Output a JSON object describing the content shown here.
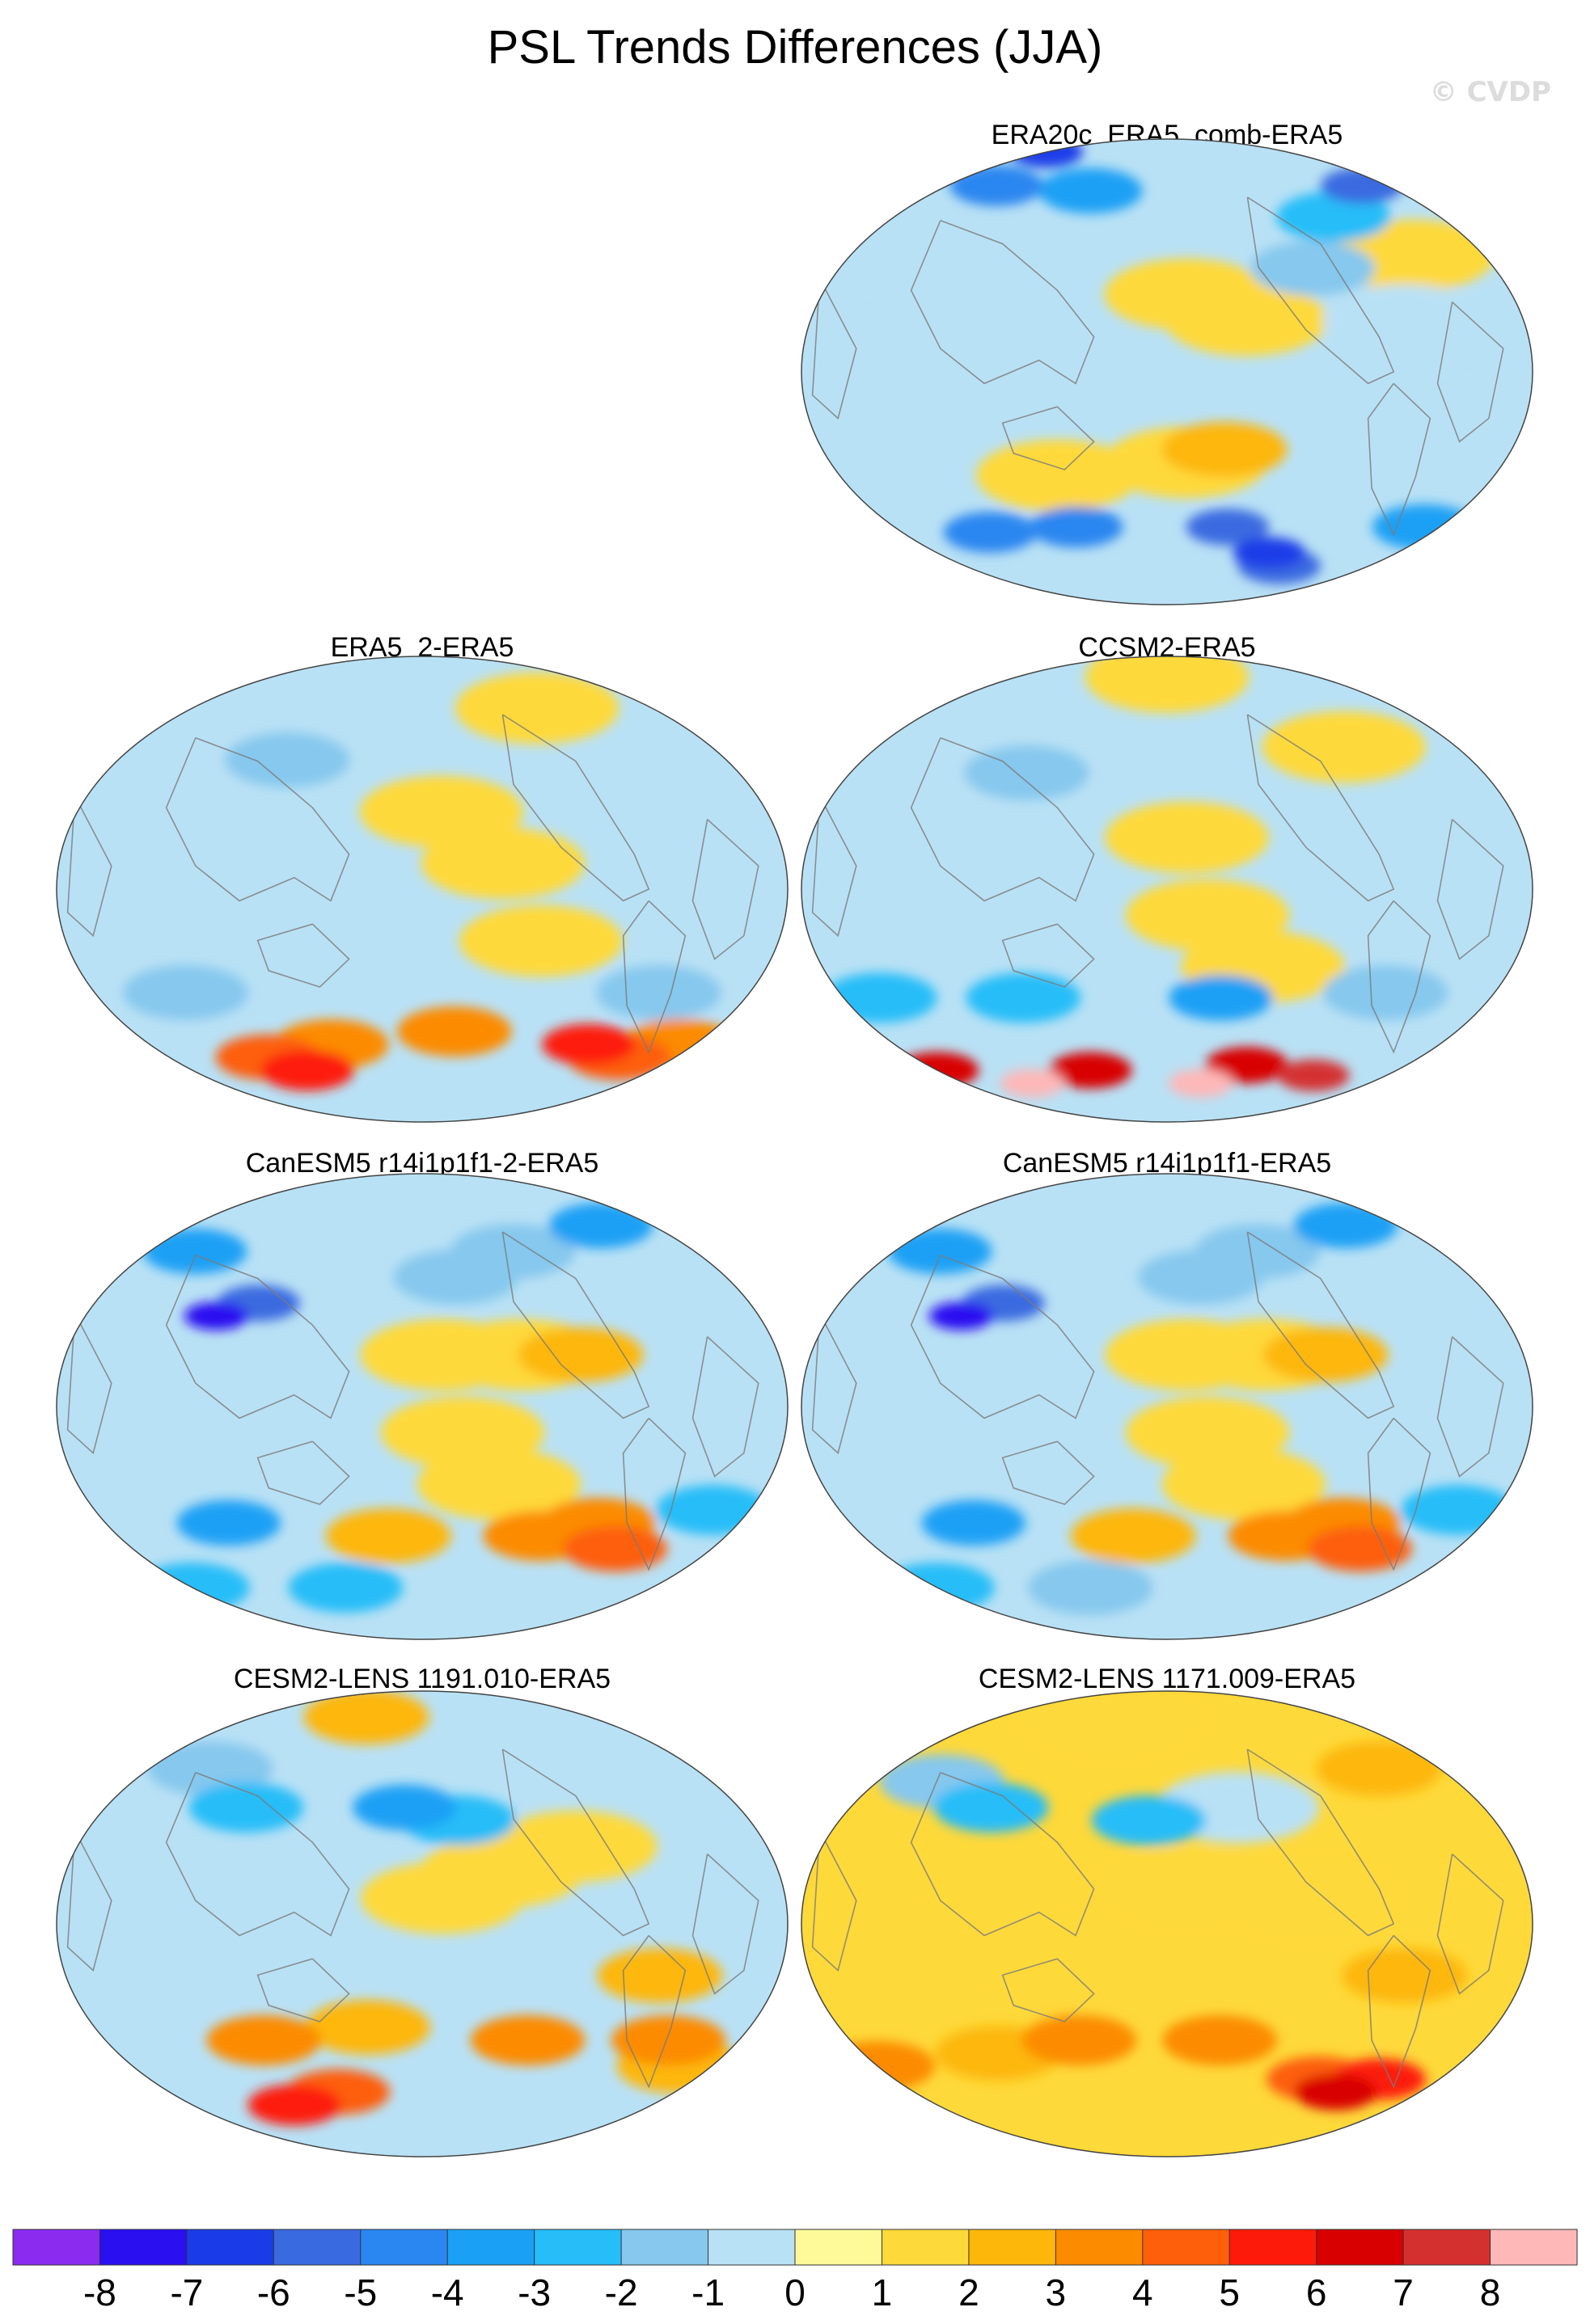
{
  "title": "PSL Trends Differences (JJA)",
  "watermark": "© CVDP",
  "chart_data": {
    "type": "heatmap",
    "title": "PSL Trends Differences (JJA)",
    "projection": "Robinson-like global maps, Pacific-centered",
    "panels": [
      {
        "id": "p0",
        "title": "ERA20c_ERA5_comb-ERA5",
        "row": 0,
        "col": 1,
        "blobs": [
          [
            0,
            85,
            -7
          ],
          [
            -20,
            72,
            -6
          ],
          [
            40,
            72,
            -5
          ],
          [
            120,
            70,
            -4
          ],
          [
            -70,
            60,
            -3
          ],
          [
            -100,
            40,
            -2
          ],
          [
            -170,
            30,
            1
          ],
          [
            -140,
            20,
            1
          ],
          [
            -40,
            45,
            1
          ],
          [
            30,
            20,
            -1
          ],
          [
            70,
            0,
            -1
          ],
          [
            -30,
            -10,
            -1
          ],
          [
            -150,
            -30,
            2
          ],
          [
            -170,
            -35,
            1
          ],
          [
            120,
            -40,
            1
          ],
          [
            -60,
            20,
            -1
          ],
          [
            -140,
            -60,
            -6
          ],
          [
            60,
            -62,
            -5
          ],
          [
            -10,
            -60,
            -4
          ],
          [
            120,
            -60,
            -5
          ],
          [
            -80,
            -75,
            -6
          ],
          [
            -100,
            -70,
            -7
          ]
        ],
        "base": -1
      },
      {
        "id": "p1",
        "title": "ERA5_2-ERA5",
        "row": 1,
        "col": 0,
        "blobs": [
          [
            -90,
            70,
            1
          ],
          [
            100,
            50,
            -2
          ],
          [
            30,
            55,
            -1
          ],
          [
            -170,
            30,
            1
          ],
          [
            -140,
            10,
            1
          ],
          [
            -120,
            -20,
            1
          ],
          [
            50,
            -40,
            -2
          ],
          [
            -50,
            -40,
            -2
          ],
          [
            70,
            -65,
            4
          ],
          [
            120,
            -60,
            3
          ],
          [
            -160,
            -55,
            3
          ],
          [
            -40,
            -65,
            4
          ],
          [
            -70,
            -60,
            5
          ],
          [
            90,
            -70,
            5
          ],
          [
            -10,
            -60,
            3
          ]
        ],
        "base": -1
      },
      {
        "id": "p2",
        "title": "CCSM2-ERA5",
        "row": 1,
        "col": 1,
        "blobs": [
          [
            180,
            82,
            1
          ],
          [
            -70,
            55,
            1
          ],
          [
            100,
            45,
            -2
          ],
          [
            40,
            50,
            -1
          ],
          [
            -170,
            20,
            1
          ],
          [
            -160,
            -10,
            1
          ],
          [
            -130,
            -30,
            1
          ],
          [
            -150,
            -42,
            -4
          ],
          [
            20,
            -42,
            -3
          ],
          [
            -60,
            -40,
            -2
          ],
          [
            100,
            -42,
            -3
          ],
          [
            120,
            -70,
            6
          ],
          [
            0,
            -70,
            6
          ],
          [
            -120,
            -68,
            6
          ],
          [
            -60,
            -72,
            7
          ],
          [
            60,
            -75,
            8
          ],
          [
            -150,
            -75,
            8
          ]
        ],
        "base": -1
      },
      {
        "id": "p3",
        "title": "CanESM5 r14i1p1f1-2-ERA5",
        "row": 2,
        "col": 0,
        "blobs": [
          [
            90,
            40,
            -6
          ],
          [
            70,
            35,
            -8
          ],
          [
            30,
            60,
            -4
          ],
          [
            -40,
            70,
            -4
          ],
          [
            -120,
            60,
            -2
          ],
          [
            -160,
            50,
            -2
          ],
          [
            -170,
            20,
            1
          ],
          [
            -130,
            20,
            1
          ],
          [
            -100,
            20,
            2
          ],
          [
            -160,
            -10,
            1
          ],
          [
            -140,
            -30,
            1
          ],
          [
            -110,
            -50,
            3
          ],
          [
            -80,
            -45,
            3
          ],
          [
            -60,
            -55,
            4
          ],
          [
            70,
            -45,
            -4
          ],
          [
            -20,
            -40,
            -3
          ],
          [
            120,
            -70,
            -3
          ],
          [
            0,
            -70,
            -3
          ],
          [
            160,
            -50,
            2
          ]
        ],
        "base": -1
      },
      {
        "id": "p4",
        "title": "CanESM5 r14i1p1f1-ERA5",
        "row": 2,
        "col": 1,
        "blobs": [
          [
            90,
            40,
            -6
          ],
          [
            70,
            35,
            -8
          ],
          [
            30,
            60,
            -4
          ],
          [
            -40,
            70,
            -4
          ],
          [
            -120,
            60,
            -2
          ],
          [
            -160,
            50,
            -2
          ],
          [
            -170,
            20,
            1
          ],
          [
            -130,
            20,
            1
          ],
          [
            -100,
            20,
            2
          ],
          [
            -160,
            -10,
            1
          ],
          [
            -140,
            -30,
            1
          ],
          [
            -110,
            -50,
            3
          ],
          [
            -80,
            -45,
            3
          ],
          [
            -60,
            -55,
            4
          ],
          [
            70,
            -45,
            -4
          ],
          [
            -20,
            -40,
            -3
          ],
          [
            120,
            -70,
            -2
          ],
          [
            0,
            -70,
            -3
          ],
          [
            160,
            -50,
            2
          ]
        ],
        "base": -1
      },
      {
        "id": "p5",
        "title": "CESM2-LENS 1191.010-ERA5",
        "row": 3,
        "col": 0,
        "blobs": [
          [
            120,
            80,
            2
          ],
          [
            80,
            45,
            -3
          ],
          [
            170,
            45,
            -4
          ],
          [
            -160,
            40,
            -3
          ],
          [
            40,
            60,
            -2
          ],
          [
            -140,
            20,
            1
          ],
          [
            -100,
            30,
            1
          ],
          [
            -170,
            10,
            1
          ],
          [
            -60,
            -20,
            2
          ],
          [
            -120,
            -45,
            3
          ],
          [
            -40,
            -45,
            3
          ],
          [
            90,
            -45,
            3
          ],
          [
            150,
            -40,
            2
          ],
          [
            80,
            -70,
            5
          ],
          [
            120,
            -65,
            4
          ],
          [
            -20,
            -55,
            2
          ]
        ],
        "base": -1
      },
      {
        "id": "p6",
        "title": "CESM2-LENS 1171.009-ERA5",
        "row": 3,
        "col": 1,
        "blobs": [
          [
            120,
            80,
            1
          ],
          [
            80,
            45,
            -3
          ],
          [
            170,
            40,
            -3
          ],
          [
            -140,
            45,
            -1
          ],
          [
            40,
            55,
            -2
          ],
          [
            -40,
            60,
            2
          ],
          [
            -170,
            15,
            1
          ],
          [
            -110,
            10,
            1
          ],
          [
            -60,
            -20,
            2
          ],
          [
            -150,
            -45,
            3
          ],
          [
            130,
            -45,
            3
          ],
          [
            80,
            -50,
            2
          ],
          [
            -40,
            -60,
            5
          ],
          [
            -60,
            -65,
            6
          ],
          [
            -80,
            -60,
            4
          ],
          [
            0,
            -55,
            3
          ]
        ],
        "base": 1
      }
    ],
    "colorbar": {
      "ticks": [
        "-8",
        "-7",
        "-6",
        "-5",
        "-4",
        "-3",
        "-2",
        "-1",
        "0",
        "1",
        "2",
        "3",
        "4",
        "5",
        "6",
        "7",
        "8"
      ],
      "colors": [
        "#8b2bf0",
        "#2a0ff0",
        "#1a3ce8",
        "#3a6ae0",
        "#2a86f0",
        "#1aa0f5",
        "#26bdf8",
        "#86c8ee",
        "#b9e1f5",
        "#fefa9a",
        "#fed93a",
        "#fdb70a",
        "#fc8b00",
        "#fd5f0a",
        "#fd1a0a",
        "#d80000",
        "#d43030",
        "#feb8b8"
      ]
    }
  }
}
